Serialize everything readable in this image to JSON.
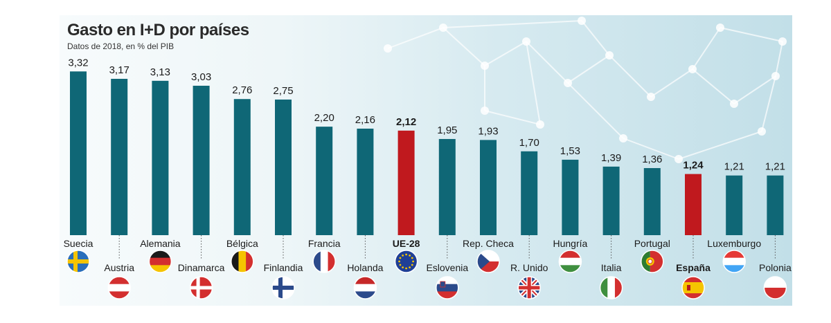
{
  "chart_data": {
    "type": "bar",
    "title": "Gasto en I+D por países",
    "subtitle": "Datos de 2018, en % del PIB",
    "categories": [
      "Suecia",
      "Austria",
      "Alemania",
      "Dinamarca",
      "Bélgica",
      "Finlandia",
      "Francia",
      "Holanda",
      "UE-28",
      "Eslovenia",
      "Rep. Checa",
      "R. Unido",
      "Hungría",
      "Italia",
      "Portugal",
      "España",
      "Luxemburgo",
      "Polonia"
    ],
    "series": [
      {
        "values": [
          3.32,
          3.17,
          3.13,
          3.03,
          2.76,
          2.75,
          2.2,
          2.16,
          2.12,
          1.95,
          1.93,
          1.7,
          1.53,
          1.39,
          1.36,
          1.24,
          1.21,
          1.21
        ]
      }
    ],
    "value_labels": [
      "3,32",
      "3,17",
      "3,13",
      "3,03",
      "2,76",
      "2,75",
      "2,20",
      "2,16",
      "2,12",
      "1,95",
      "1,93",
      "1,70",
      "1,53",
      "1,39",
      "1,36",
      "1,24",
      "1,21",
      "1,21"
    ],
    "highlighted": [
      "UE-28",
      "España"
    ],
    "colors": {
      "bar": "#0f6776",
      "highlight": "#c0191e"
    },
    "flags": [
      "sweden-flag",
      "austria-flag",
      "germany-flag",
      "denmark-flag",
      "belgium-flag",
      "finland-flag",
      "france-flag",
      "netherlands-flag",
      "eu-flag",
      "slovenia-flag",
      "czech-flag",
      "uk-flag",
      "hungary-flag",
      "italy-flag",
      "portugal-flag",
      "spain-flag",
      "luxembourg-flag",
      "poland-flag"
    ],
    "grid": false,
    "legend": "none"
  }
}
